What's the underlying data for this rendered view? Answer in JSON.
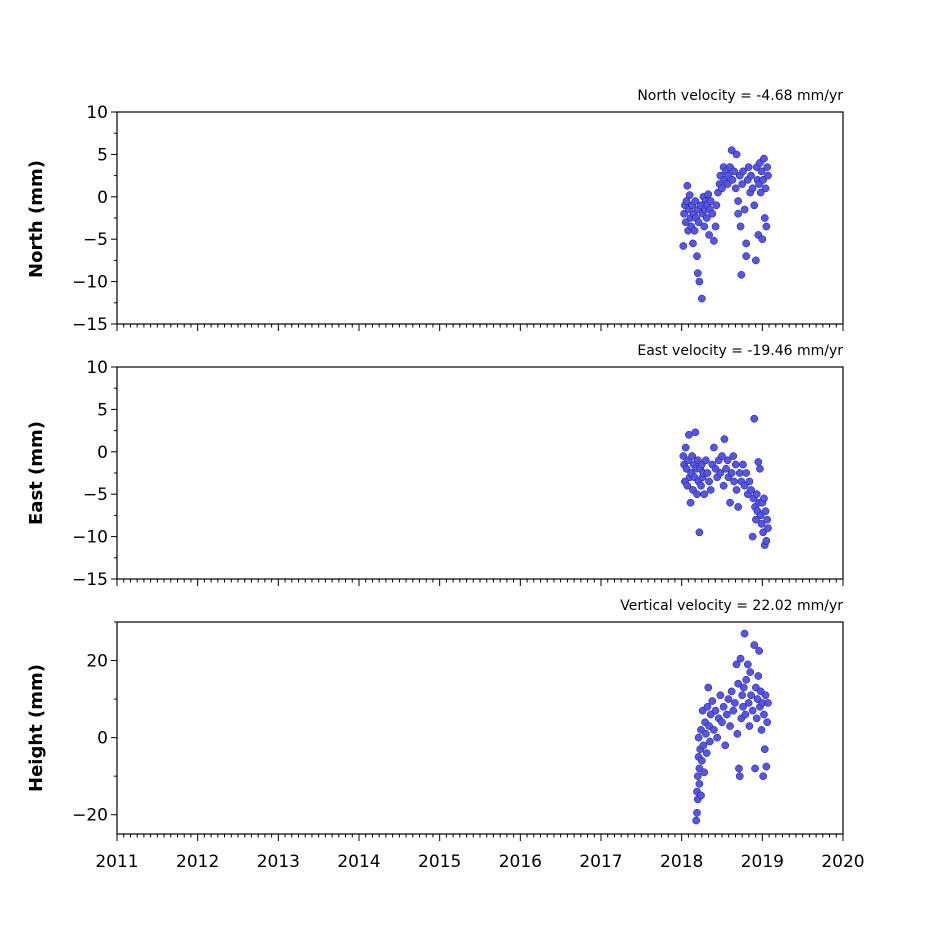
{
  "chart_data": [
    {
      "type": "scatter",
      "panel": "north",
      "title": "North velocity = -4.68 mm/yr",
      "ylabel": "North (mm)",
      "xlim": [
        2011,
        2020
      ],
      "ylim": [
        -15,
        10
      ],
      "yticks": [
        10,
        5,
        0,
        -5,
        -10,
        -15
      ],
      "yticklabels": [
        "10",
        "5",
        "0",
        "−5",
        "−10",
        "−15"
      ],
      "color": "#5555ee",
      "points": [
        [
          2018.02,
          -5.8
        ],
        [
          2018.03,
          -2.0
        ],
        [
          2018.04,
          -1.0
        ],
        [
          2018.05,
          -3.0
        ],
        [
          2018.06,
          -0.5
        ],
        [
          2018.07,
          1.3
        ],
        [
          2018.08,
          -4.0
        ],
        [
          2018.09,
          -1.5
        ],
        [
          2018.1,
          0.2
        ],
        [
          2018.11,
          -2.5
        ],
        [
          2018.12,
          -3.5
        ],
        [
          2018.13,
          -1.0
        ],
        [
          2018.14,
          -5.5
        ],
        [
          2018.15,
          -2.0
        ],
        [
          2018.16,
          -4.0
        ],
        [
          2018.17,
          -0.5
        ],
        [
          2018.18,
          -2.5
        ],
        [
          2018.19,
          -7.0
        ],
        [
          2018.2,
          -1.5
        ],
        [
          2018.21,
          -3.0
        ],
        [
          2018.2,
          -9.0
        ],
        [
          2018.22,
          -10.0
        ],
        [
          2018.24,
          -1.0
        ],
        [
          2018.25,
          -12.0
        ],
        [
          2018.26,
          -2.0
        ],
        [
          2018.27,
          0.0
        ],
        [
          2018.28,
          -3.5
        ],
        [
          2018.29,
          -1.5
        ],
        [
          2018.3,
          -0.5
        ],
        [
          2018.31,
          -2.5
        ],
        [
          2018.32,
          -1.0
        ],
        [
          2018.33,
          0.3
        ],
        [
          2018.34,
          -4.5
        ],
        [
          2018.35,
          -1.5
        ],
        [
          2018.36,
          -0.5
        ],
        [
          2018.38,
          -2.0
        ],
        [
          2018.4,
          -5.2
        ],
        [
          2018.42,
          -3.5
        ],
        [
          2018.43,
          -1.0
        ],
        [
          2018.45,
          0.5
        ],
        [
          2018.47,
          1.5
        ],
        [
          2018.48,
          2.5
        ],
        [
          2018.5,
          1.0
        ],
        [
          2018.52,
          3.5
        ],
        [
          2018.53,
          2.0
        ],
        [
          2018.55,
          3.0
        ],
        [
          2018.57,
          1.5
        ],
        [
          2018.58,
          2.5
        ],
        [
          2018.6,
          3.5
        ],
        [
          2018.62,
          5.5
        ],
        [
          2018.63,
          2.0
        ],
        [
          2018.65,
          3.0
        ],
        [
          2018.67,
          1.0
        ],
        [
          2018.68,
          5.0
        ],
        [
          2018.7,
          -0.5
        ],
        [
          2018.7,
          -2.0
        ],
        [
          2018.72,
          2.5
        ],
        [
          2018.73,
          -3.5
        ],
        [
          2018.74,
          -9.2
        ],
        [
          2018.75,
          1.5
        ],
        [
          2018.76,
          3.0
        ],
        [
          2018.78,
          -1.5
        ],
        [
          2018.8,
          -5.5
        ],
        [
          2018.8,
          -7.0
        ],
        [
          2018.82,
          2.0
        ],
        [
          2018.83,
          3.5
        ],
        [
          2018.85,
          0.5
        ],
        [
          2018.86,
          2.5
        ],
        [
          2018.88,
          1.0
        ],
        [
          2018.9,
          -1.0
        ],
        [
          2018.92,
          -7.5
        ],
        [
          2018.93,
          3.5
        ],
        [
          2018.94,
          2.0
        ],
        [
          2018.95,
          -4.5
        ],
        [
          2018.96,
          1.5
        ],
        [
          2018.97,
          4.0
        ],
        [
          2018.98,
          0.5
        ],
        [
          2018.99,
          3.0
        ],
        [
          2019.0,
          -5.0
        ],
        [
          2019.01,
          2.0
        ],
        [
          2019.02,
          4.5
        ],
        [
          2019.03,
          -2.5
        ],
        [
          2019.04,
          1.0
        ],
        [
          2019.05,
          -3.5
        ],
        [
          2019.06,
          3.5
        ],
        [
          2019.07,
          2.5
        ]
      ]
    },
    {
      "type": "scatter",
      "panel": "east",
      "title": "East velocity = -19.46 mm/yr",
      "ylabel": "East (mm)",
      "xlim": [
        2011,
        2020
      ],
      "ylim": [
        -15,
        10
      ],
      "yticks": [
        10,
        5,
        0,
        -5,
        -10,
        -15
      ],
      "yticklabels": [
        "10",
        "5",
        "0",
        "−5",
        "−10",
        "−15"
      ],
      "color": "#5555ee",
      "points": [
        [
          2018.02,
          -0.5
        ],
        [
          2018.03,
          -1.5
        ],
        [
          2018.04,
          -3.5
        ],
        [
          2018.05,
          0.5
        ],
        [
          2018.06,
          -2.0
        ],
        [
          2018.07,
          -4.0
        ],
        [
          2018.08,
          -1.0
        ],
        [
          2018.09,
          2.0
        ],
        [
          2018.1,
          -3.0
        ],
        [
          2018.11,
          -6.0
        ],
        [
          2018.12,
          -2.5
        ],
        [
          2018.13,
          -0.5
        ],
        [
          2018.14,
          -4.5
        ],
        [
          2018.15,
          -1.5
        ],
        [
          2018.16,
          -3.0
        ],
        [
          2018.17,
          2.3
        ],
        [
          2018.18,
          -2.0
        ],
        [
          2018.19,
          -5.0
        ],
        [
          2018.2,
          -1.0
        ],
        [
          2018.21,
          -3.5
        ],
        [
          2018.22,
          -9.5
        ],
        [
          2018.23,
          -2.0
        ],
        [
          2018.24,
          -4.0
        ],
        [
          2018.25,
          -1.5
        ],
        [
          2018.26,
          -3.0
        ],
        [
          2018.27,
          -2.5
        ],
        [
          2018.28,
          -5.0
        ],
        [
          2018.3,
          -1.0
        ],
        [
          2018.32,
          -2.5
        ],
        [
          2018.34,
          -3.5
        ],
        [
          2018.36,
          -4.5
        ],
        [
          2018.38,
          -1.5
        ],
        [
          2018.4,
          0.5
        ],
        [
          2018.42,
          -2.0
        ],
        [
          2018.44,
          -3.0
        ],
        [
          2018.46,
          -1.0
        ],
        [
          2018.48,
          -2.5
        ],
        [
          2018.5,
          -0.5
        ],
        [
          2018.52,
          -4.0
        ],
        [
          2018.53,
          1.5
        ],
        [
          2018.55,
          -2.0
        ],
        [
          2018.57,
          -1.0
        ],
        [
          2018.58,
          -3.0
        ],
        [
          2018.6,
          -6.0
        ],
        [
          2018.62,
          -2.5
        ],
        [
          2018.64,
          -0.5
        ],
        [
          2018.65,
          -3.5
        ],
        [
          2018.67,
          -1.5
        ],
        [
          2018.68,
          -4.5
        ],
        [
          2018.7,
          -6.5
        ],
        [
          2018.72,
          -2.5
        ],
        [
          2018.74,
          -3.5
        ],
        [
          2018.76,
          -1.5
        ],
        [
          2018.78,
          -4.0
        ],
        [
          2018.8,
          -2.5
        ],
        [
          2018.82,
          -5.0
        ],
        [
          2018.84,
          -3.5
        ],
        [
          2018.86,
          -4.5
        ],
        [
          2018.88,
          -10.0
        ],
        [
          2018.89,
          -5.5
        ],
        [
          2018.9,
          3.9
        ],
        [
          2018.91,
          -6.5
        ],
        [
          2018.92,
          -8.0
        ],
        [
          2018.93,
          -5.0
        ],
        [
          2018.94,
          -7.0
        ],
        [
          2018.95,
          -1.2
        ],
        [
          2018.96,
          -6.0
        ],
        [
          2018.97,
          -2.0
        ],
        [
          2018.98,
          -7.5
        ],
        [
          2018.99,
          -8.5
        ],
        [
          2019.0,
          -6.0
        ],
        [
          2019.01,
          -9.5
        ],
        [
          2019.02,
          -5.5
        ],
        [
          2019.03,
          -11.0
        ],
        [
          2019.04,
          -7.0
        ],
        [
          2019.05,
          -10.5
        ],
        [
          2019.06,
          -8.0
        ],
        [
          2019.07,
          -9.0
        ]
      ]
    },
    {
      "type": "scatter",
      "panel": "height",
      "title": "Vertical velocity = 22.02 mm/yr",
      "ylabel": "Height (mm)",
      "xlim": [
        2011,
        2020
      ],
      "ylim": [
        -25,
        30
      ],
      "yticks": [
        20,
        0,
        -20
      ],
      "yticklabels": [
        "20",
        "0",
        "−20"
      ],
      "color": "#5555ee",
      "points": [
        [
          2018.18,
          -21.5
        ],
        [
          2018.19,
          -19.5
        ],
        [
          2018.19,
          -14.0
        ],
        [
          2018.2,
          -16.0
        ],
        [
          2018.2,
          -10.0
        ],
        [
          2018.21,
          -5.0
        ],
        [
          2018.21,
          0.0
        ],
        [
          2018.22,
          -8.0
        ],
        [
          2018.22,
          -12.0
        ],
        [
          2018.23,
          -3.0
        ],
        [
          2018.24,
          -15.0
        ],
        [
          2018.24,
          2.0
        ],
        [
          2018.25,
          -6.0
        ],
        [
          2018.26,
          7.0
        ],
        [
          2018.27,
          -2.0
        ],
        [
          2018.28,
          -9.0
        ],
        [
          2018.29,
          4.0
        ],
        [
          2018.3,
          1.0
        ],
        [
          2018.31,
          -4.0
        ],
        [
          2018.32,
          8.0
        ],
        [
          2018.33,
          13.0
        ],
        [
          2018.34,
          3.0
        ],
        [
          2018.35,
          -1.0
        ],
        [
          2018.36,
          6.0
        ],
        [
          2018.38,
          9.5
        ],
        [
          2018.4,
          2.0
        ],
        [
          2018.42,
          7.0
        ],
        [
          2018.44,
          0.0
        ],
        [
          2018.46,
          5.0
        ],
        [
          2018.48,
          11.0
        ],
        [
          2018.5,
          4.0
        ],
        [
          2018.52,
          8.0
        ],
        [
          2018.54,
          -2.0
        ],
        [
          2018.56,
          6.0
        ],
        [
          2018.58,
          10.0
        ],
        [
          2018.6,
          3.0
        ],
        [
          2018.62,
          12.0
        ],
        [
          2018.64,
          7.0
        ],
        [
          2018.66,
          9.0
        ],
        [
          2018.68,
          19.0
        ],
        [
          2018.69,
          1.0
        ],
        [
          2018.7,
          14.0
        ],
        [
          2018.71,
          -8.0
        ],
        [
          2018.72,
          -10.0
        ],
        [
          2018.73,
          20.5
        ],
        [
          2018.74,
          5.0
        ],
        [
          2018.75,
          11.0
        ],
        [
          2018.76,
          8.0
        ],
        [
          2018.77,
          13.0
        ],
        [
          2018.78,
          27.0
        ],
        [
          2018.79,
          6.0
        ],
        [
          2018.8,
          15.0
        ],
        [
          2018.82,
          19.0
        ],
        [
          2018.83,
          9.0
        ],
        [
          2018.84,
          3.0
        ],
        [
          2018.85,
          17.0
        ],
        [
          2018.86,
          11.0
        ],
        [
          2018.88,
          7.0
        ],
        [
          2018.9,
          24.0
        ],
        [
          2018.91,
          -8.0
        ],
        [
          2018.92,
          13.0
        ],
        [
          2018.93,
          5.0
        ],
        [
          2018.94,
          10.0
        ],
        [
          2018.95,
          16.0
        ],
        [
          2018.96,
          22.5
        ],
        [
          2018.97,
          8.0
        ],
        [
          2018.98,
          12.0
        ],
        [
          2018.99,
          2.0
        ],
        [
          2019.0,
          9.0
        ],
        [
          2019.01,
          -10.0
        ],
        [
          2019.02,
          6.0
        ],
        [
          2019.03,
          -3.0
        ],
        [
          2019.04,
          11.0
        ],
        [
          2019.05,
          -7.5
        ],
        [
          2019.06,
          4.0
        ],
        [
          2019.07,
          9.0
        ]
      ]
    }
  ],
  "xticklabels": [
    "2011",
    "2012",
    "2013",
    "2014",
    "2015",
    "2016",
    "2017",
    "2018",
    "2019",
    "2020"
  ]
}
